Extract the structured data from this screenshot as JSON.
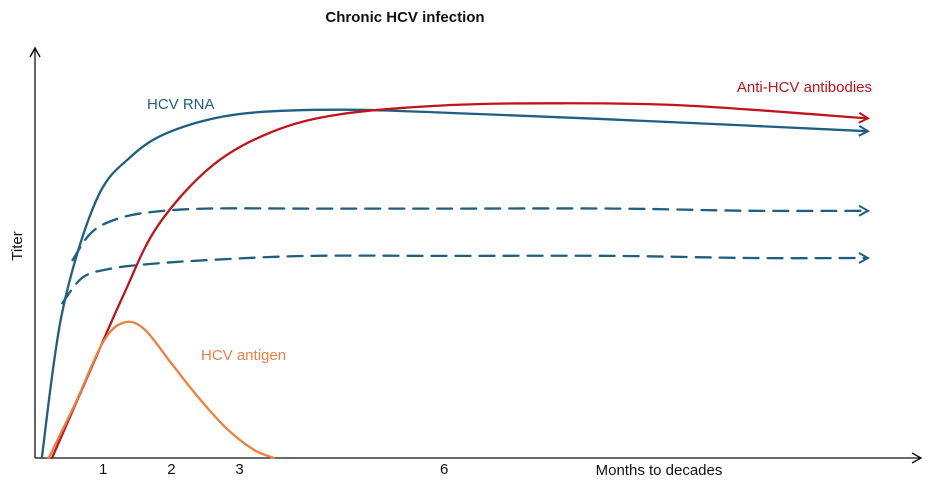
{
  "chart_data": {
    "type": "line",
    "title": "Chronic HCV infection",
    "xlabel": "Months to decades",
    "ylabel": "Titer",
    "x_ticks": [
      "1",
      "2",
      "3",
      "6"
    ],
    "grid": false,
    "series": [
      {
        "name": "HCV RNA",
        "color": "#1f5f80",
        "style": "solid",
        "arrow": true,
        "x": [
          0.1,
          0.4,
          0.9,
          1.4,
          2.0,
          3.0,
          4.5,
          6.5,
          9.5,
          12.2
        ],
        "y": [
          0.0,
          0.34,
          0.6,
          0.7,
          0.76,
          0.8,
          0.81,
          0.8,
          0.78,
          0.76
        ]
      },
      {
        "name": "",
        "color": "#1f5f80",
        "style": "dashed",
        "arrow": true,
        "x": [
          0.55,
          0.8,
          1.1,
          1.6,
          2.5,
          4.0,
          6.0,
          8.5,
          10.5,
          12.2
        ],
        "y": [
          0.46,
          0.52,
          0.55,
          0.57,
          0.58,
          0.58,
          0.58,
          0.58,
          0.575,
          0.575
        ]
      },
      {
        "name": "",
        "color": "#1f5f80",
        "style": "dashed",
        "arrow": true,
        "x": [
          0.4,
          0.7,
          1.1,
          1.6,
          2.5,
          4.0,
          6.0,
          8.5,
          10.5,
          12.2
        ],
        "y": [
          0.36,
          0.42,
          0.44,
          0.45,
          0.46,
          0.47,
          0.47,
          0.47,
          0.465,
          0.465
        ]
      },
      {
        "name": "Anti-HCV antibodies",
        "color": "#c0141c",
        "style": "solid",
        "arrow": true,
        "x": [
          0.25,
          0.8,
          1.3,
          1.8,
          2.6,
          3.5,
          4.5,
          6.0,
          7.5,
          9.5,
          12.2
        ],
        "y": [
          0.0,
          0.2,
          0.38,
          0.54,
          0.68,
          0.76,
          0.8,
          0.82,
          0.825,
          0.82,
          0.79
        ]
      },
      {
        "name": "HCV antigen",
        "color": "#ef7f3d",
        "style": "solid",
        "arrow": false,
        "x": [
          0.2,
          0.6,
          1.0,
          1.3,
          1.6,
          2.0,
          2.4,
          2.8,
          3.2,
          3.5
        ],
        "y": [
          0.0,
          0.13,
          0.27,
          0.315,
          0.3,
          0.22,
          0.14,
          0.07,
          0.02,
          0.0
        ]
      }
    ]
  }
}
